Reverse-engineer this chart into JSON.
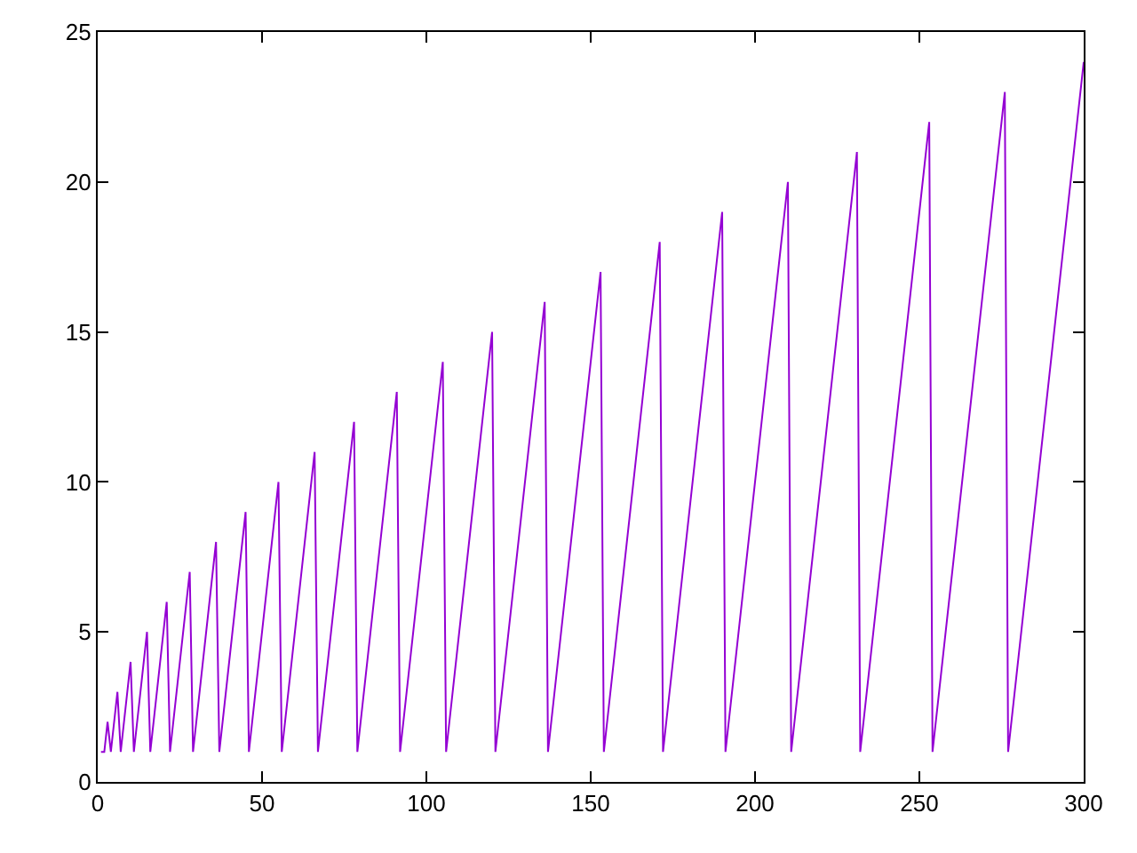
{
  "chart_data": {
    "type": "line",
    "x": [
      1,
      2,
      3,
      4,
      6,
      7,
      10,
      11,
      15,
      16,
      21,
      22,
      28,
      29,
      36,
      37,
      45,
      46,
      55,
      56,
      66,
      67,
      78,
      79,
      91,
      92,
      105,
      106,
      120,
      121,
      136,
      137,
      153,
      154,
      171,
      172,
      190,
      191,
      210,
      211,
      231,
      232,
      253,
      254,
      276,
      277,
      300
    ],
    "series": [
      {
        "color": "#9400d3",
        "values": [
          1,
          1,
          2,
          1,
          3,
          1,
          4,
          1,
          5,
          1,
          6,
          1,
          7,
          1,
          8,
          1,
          9,
          1,
          10,
          1,
          11,
          1,
          12,
          1,
          13,
          1,
          14,
          1,
          15,
          1,
          16,
          1,
          17,
          1,
          18,
          1,
          19,
          1,
          20,
          1,
          21,
          1,
          22,
          1,
          23,
          1,
          24
        ]
      }
    ],
    "xlim": [
      0,
      300
    ],
    "xticks": [
      0,
      50,
      100,
      150,
      200,
      250,
      300
    ],
    "ylim": [
      0,
      25
    ],
    "yticks": [
      0,
      5,
      10,
      15,
      20,
      25
    ],
    "marker": "none",
    "line_style": "solid"
  }
}
